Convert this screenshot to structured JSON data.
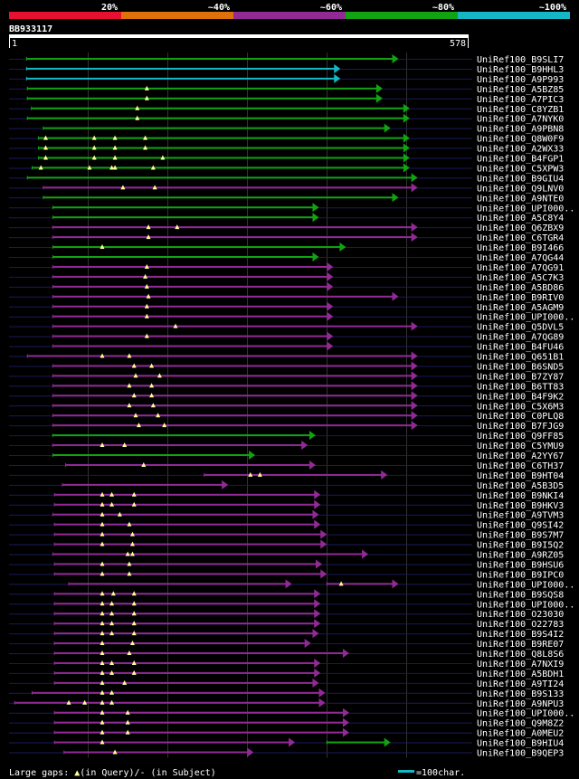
{
  "chart_data": {
    "type": "alignment-overview",
    "title": "BB933117",
    "query_length_range": [
      1,
      578
    ],
    "identity_legend": [
      {
        "label": "20%",
        "color": "#e8102e"
      },
      {
        "label": "~40%",
        "color": "#e0700a"
      },
      {
        "label": "~60%",
        "color": "#922a96"
      },
      {
        "label": "~80%",
        "color": "#11a311"
      },
      {
        "label": "~100%",
        "color": "#14b8c4"
      }
    ],
    "colors": {
      "background": "#000000",
      "guide_line": "#1a1a5a",
      "column_grid": "#333333",
      "gap_marker": "#ffff99",
      "ruler": "#ffffff"
    },
    "hits": [
      {
        "name": "UniRef100_B9SLI7",
        "start": 23,
        "end": 490,
        "id": 80,
        "gaps": [],
        "ext": null
      },
      {
        "name": "UniRef100_B9HHL3",
        "start": 23,
        "end": 417,
        "id": 100,
        "gaps": [],
        "ext": null
      },
      {
        "name": "UniRef100_A9P993",
        "start": 23,
        "end": 417,
        "id": 100,
        "gaps": [],
        "ext": null
      },
      {
        "name": "UniRef100_A5BZ85",
        "start": 24,
        "end": 470,
        "id": 80,
        "gaps": [
          174
        ],
        "ext": null
      },
      {
        "name": "UniRef100_A7PIC3",
        "start": 24,
        "end": 470,
        "id": 80,
        "gaps": [
          174
        ],
        "ext": null
      },
      {
        "name": "UniRef100_C8YZB1",
        "start": 29,
        "end": 504,
        "id": 80,
        "gaps": [
          162
        ],
        "ext": null
      },
      {
        "name": "UniRef100_A7NYK0",
        "start": 24,
        "end": 504,
        "id": 80,
        "gaps": [
          162
        ],
        "ext": null
      },
      {
        "name": "UniRef100_A9PBN8",
        "start": 44,
        "end": 480,
        "id": 80,
        "gaps": [],
        "ext": null
      },
      {
        "name": "UniRef100_Q8W0F9",
        "start": 38,
        "end": 504,
        "id": 80,
        "gaps": [
          47,
          108,
          134,
          172
        ],
        "ext": null
      },
      {
        "name": "UniRef100_A2WX33",
        "start": 38,
        "end": 504,
        "id": 80,
        "gaps": [
          47,
          108,
          134,
          172
        ],
        "ext": null
      },
      {
        "name": "UniRef100_B4FGP1",
        "start": 38,
        "end": 504,
        "id": 80,
        "gaps": [
          47,
          108,
          134,
          194
        ],
        "ext": null
      },
      {
        "name": "UniRef100_C5XPW3",
        "start": 30,
        "end": 504,
        "id": 80,
        "gaps": [
          41,
          102,
          130,
          134,
          182
        ],
        "ext": null
      },
      {
        "name": "UniRef100_B9GIU4",
        "start": 24,
        "end": 514,
        "id": 80,
        "gaps": [],
        "ext": null
      },
      {
        "name": "UniRef100_Q9LNV0",
        "start": 44,
        "end": 514,
        "id": 60,
        "gaps": [
          144,
          184
        ],
        "ext": null
      },
      {
        "name": "UniRef100_A9NTE0",
        "start": 44,
        "end": 490,
        "id": 80,
        "gaps": [],
        "ext": null
      },
      {
        "name": "UniRef100_UPI000..",
        "start": 56,
        "end": 390,
        "id": 80,
        "gaps": [],
        "ext": null
      },
      {
        "name": "UniRef100_A5C8Y4",
        "start": 56,
        "end": 390,
        "id": 80,
        "gaps": [],
        "ext": null
      },
      {
        "name": "UniRef100_Q6ZBX9",
        "start": 56,
        "end": 514,
        "id": 60,
        "gaps": [
          176,
          212
        ],
        "ext": null
      },
      {
        "name": "UniRef100_C6TGR4",
        "start": 56,
        "end": 514,
        "id": 60,
        "gaps": [
          176
        ],
        "ext": null
      },
      {
        "name": "UniRef100_B9I466",
        "start": 56,
        "end": 424,
        "id": 80,
        "gaps": [
          118
        ],
        "ext": null
      },
      {
        "name": "UniRef100_A7QG44",
        "start": 56,
        "end": 390,
        "id": 80,
        "gaps": [],
        "ext": null
      },
      {
        "name": "UniRef100_A7QG91",
        "start": 56,
        "end": 408,
        "id": 60,
        "gaps": [
          174
        ],
        "ext": null
      },
      {
        "name": "UniRef100_A5C7K3",
        "start": 56,
        "end": 408,
        "id": 60,
        "gaps": [
          172
        ],
        "ext": null
      },
      {
        "name": "UniRef100_A5BD86",
        "start": 56,
        "end": 408,
        "id": 60,
        "gaps": [
          174
        ],
        "ext": null
      },
      {
        "name": "UniRef100_B9RIV0",
        "start": 56,
        "end": 490,
        "id": 60,
        "gaps": [
          176
        ],
        "ext": null
      },
      {
        "name": "UniRef100_A5AGM9",
        "start": 56,
        "end": 408,
        "id": 60,
        "gaps": [
          174
        ],
        "ext": null
      },
      {
        "name": "UniRef100_UPI000..",
        "start": 56,
        "end": 408,
        "id": 60,
        "gaps": [
          174
        ],
        "ext": null
      },
      {
        "name": "UniRef100_Q5DVL5",
        "start": 56,
        "end": 514,
        "id": 60,
        "gaps": [
          210
        ],
        "ext": null
      },
      {
        "name": "UniRef100_A7QG89",
        "start": 56,
        "end": 408,
        "id": 60,
        "gaps": [
          174
        ],
        "ext": null
      },
      {
        "name": "UniRef100_B4FU46",
        "start": 56,
        "end": 408,
        "id": 60,
        "gaps": [],
        "ext": null
      },
      {
        "name": "UniRef100_Q651B1",
        "start": 24,
        "end": 514,
        "id": 60,
        "gaps": [
          118,
          152
        ],
        "ext": null
      },
      {
        "name": "UniRef100_B6SND5",
        "start": 56,
        "end": 514,
        "id": 60,
        "gaps": [
          158,
          180
        ],
        "ext": null
      },
      {
        "name": "UniRef100_B7ZY87",
        "start": 56,
        "end": 514,
        "id": 60,
        "gaps": [
          160,
          190
        ],
        "ext": null
      },
      {
        "name": "UniRef100_B6TT83",
        "start": 56,
        "end": 514,
        "id": 60,
        "gaps": [
          152,
          180
        ],
        "ext": null
      },
      {
        "name": "UniRef100_B4F9K2",
        "start": 56,
        "end": 514,
        "id": 60,
        "gaps": [
          158,
          180
        ],
        "ext": null
      },
      {
        "name": "UniRef100_C5X6M3",
        "start": 56,
        "end": 514,
        "id": 60,
        "gaps": [
          152,
          182
        ],
        "ext": null
      },
      {
        "name": "UniRef100_C0PLQ8",
        "start": 56,
        "end": 514,
        "id": 60,
        "gaps": [
          160,
          188
        ],
        "ext": null
      },
      {
        "name": "UniRef100_B7FJG9",
        "start": 56,
        "end": 514,
        "id": 60,
        "gaps": [
          164,
          196
        ],
        "ext": null
      },
      {
        "name": "UniRef100_Q9FF85",
        "start": 56,
        "end": 386,
        "id": 80,
        "gaps": [],
        "ext": null
      },
      {
        "name": "UniRef100_C5YMU9",
        "start": 56,
        "end": 376,
        "id": 60,
        "gaps": [
          118,
          146
        ],
        "ext": null
      },
      {
        "name": "UniRef100_A2YY67",
        "start": 56,
        "end": 310,
        "id": 80,
        "gaps": [],
        "ext": null
      },
      {
        "name": "UniRef100_C6TH37",
        "start": 72,
        "end": 386,
        "id": 60,
        "gaps": [
          170
        ],
        "ext": null
      },
      {
        "name": "UniRef100_B9HT04",
        "start": 246,
        "end": 476,
        "id": 60,
        "gaps": [
          304,
          316
        ],
        "ext": null
      },
      {
        "name": "UniRef100_A5B3D5",
        "start": 68,
        "end": 276,
        "id": 60,
        "gaps": [],
        "ext": null
      },
      {
        "name": "UniRef100_B9NKI4",
        "start": 58,
        "end": 392,
        "id": 60,
        "gaps": [
          118,
          130,
          158
        ],
        "ext": null
      },
      {
        "name": "UniRef100_B9HKV3",
        "start": 58,
        "end": 392,
        "id": 60,
        "gaps": [
          118,
          130,
          158
        ],
        "ext": null
      },
      {
        "name": "UniRef100_A9TVM3",
        "start": 56,
        "end": 390,
        "id": 60,
        "gaps": [
          118,
          140
        ],
        "ext": null
      },
      {
        "name": "UniRef100_Q9SI42",
        "start": 58,
        "end": 392,
        "id": 60,
        "gaps": [
          118,
          152
        ],
        "ext": null
      },
      {
        "name": "UniRef100_B9S7M7",
        "start": 58,
        "end": 400,
        "id": 60,
        "gaps": [
          118,
          156
        ],
        "ext": null
      },
      {
        "name": "UniRef100_B9I5Q2",
        "start": 58,
        "end": 400,
        "id": 60,
        "gaps": [
          118,
          156
        ],
        "ext": null
      },
      {
        "name": "UniRef100_A9RZ05",
        "start": 56,
        "end": 452,
        "id": 60,
        "gaps": [
          150,
          156
        ],
        "ext": null
      },
      {
        "name": "UniRef100_B9HSU6",
        "start": 58,
        "end": 394,
        "id": 60,
        "gaps": [
          118,
          152
        ],
        "ext": null
      },
      {
        "name": "UniRef100_B9IPC0",
        "start": 58,
        "end": 400,
        "id": 60,
        "gaps": [
          118,
          152
        ],
        "ext": null
      },
      {
        "name": "UniRef100_UPI000..",
        "start": 76,
        "end": 356,
        "id": 60,
        "gaps": [],
        "ext": {
          "start": 400,
          "end": 490,
          "gaps": [
            418
          ]
        }
      },
      {
        "name": "UniRef100_B9SQS8",
        "start": 58,
        "end": 392,
        "id": 60,
        "gaps": [
          118,
          132,
          158
        ],
        "ext": null
      },
      {
        "name": "UniRef100_UPI000..",
        "start": 58,
        "end": 392,
        "id": 60,
        "gaps": [
          118,
          130,
          158
        ],
        "ext": null
      },
      {
        "name": "UniRef100_O23030",
        "start": 58,
        "end": 392,
        "id": 60,
        "gaps": [
          118,
          130,
          158
        ],
        "ext": null
      },
      {
        "name": "UniRef100_O22783",
        "start": 58,
        "end": 392,
        "id": 60,
        "gaps": [
          118,
          130,
          158
        ],
        "ext": null
      },
      {
        "name": "UniRef100_B9S4I2",
        "start": 58,
        "end": 390,
        "id": 60,
        "gaps": [
          118,
          130,
          158
        ],
        "ext": null
      },
      {
        "name": "UniRef100_B9RE07",
        "start": 58,
        "end": 380,
        "id": 60,
        "gaps": [
          118,
          156
        ],
        "ext": null
      },
      {
        "name": "UniRef100_Q8L8S6",
        "start": 58,
        "end": 428,
        "id": 60,
        "gaps": [
          118,
          152
        ],
        "ext": null
      },
      {
        "name": "UniRef100_A7NXI9",
        "start": 58,
        "end": 392,
        "id": 60,
        "gaps": [
          118,
          130,
          158
        ],
        "ext": null
      },
      {
        "name": "UniRef100_A5BDH1",
        "start": 58,
        "end": 392,
        "id": 60,
        "gaps": [
          118,
          130,
          158
        ],
        "ext": null
      },
      {
        "name": "UniRef100_A9TI24",
        "start": 58,
        "end": 390,
        "id": 60,
        "gaps": [
          118,
          146
        ],
        "ext": null
      },
      {
        "name": "UniRef100_B9S133",
        "start": 30,
        "end": 398,
        "id": 60,
        "gaps": [
          118,
          130
        ],
        "ext": null
      },
      {
        "name": "UniRef100_A9NPU3",
        "start": 8,
        "end": 398,
        "id": 60,
        "gaps": [
          76,
          96,
          118,
          130
        ],
        "ext": null
      },
      {
        "name": "UniRef100_UPI000..",
        "start": 58,
        "end": 428,
        "id": 60,
        "gaps": [
          118,
          150
        ],
        "ext": null
      },
      {
        "name": "UniRef100_Q9M8Z2",
        "start": 58,
        "end": 428,
        "id": 60,
        "gaps": [
          118,
          150
        ],
        "ext": null
      },
      {
        "name": "UniRef100_A0MEU2",
        "start": 58,
        "end": 428,
        "id": 60,
        "gaps": [
          118,
          150
        ],
        "ext": null
      },
      {
        "name": "UniRef100_B9HIU4",
        "start": 58,
        "end": 360,
        "id": 60,
        "gaps": [
          118
        ],
        "ext": {
          "start": 400,
          "end": 480,
          "id": 80,
          "gaps": []
        }
      },
      {
        "name": "UniRef100_B9QEP3",
        "start": 70,
        "end": 308,
        "id": 60,
        "gaps": [
          134
        ],
        "ext": null
      }
    ],
    "footer": {
      "gaps_label": "Large gaps: ",
      "gaps_query": "(in Query)/",
      "gaps_subject": "- (in Subject)",
      "scale_label": "=100char."
    }
  }
}
